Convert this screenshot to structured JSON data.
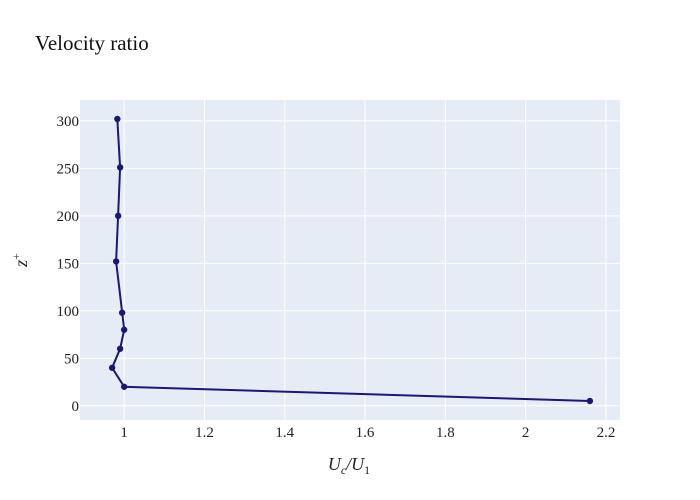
{
  "chart_data": {
    "type": "line",
    "title": "Velocity ratio",
    "xlabel": "U_c/U_1",
    "xlabel_display": "U",
    "xlabel_sub_c": "c",
    "xlabel_slash": "/U",
    "xlabel_sub_1": "1",
    "ylabel": "z+",
    "ylabel_base": "z",
    "ylabel_sup": "+",
    "xlim": [
      0.89,
      2.235
    ],
    "ylim": [
      -15,
      322
    ],
    "x_ticks": [
      1,
      1.2,
      1.4,
      1.6,
      1.8,
      2,
      2.2
    ],
    "x_tick_labels": [
      "1",
      "1.2",
      "1.4",
      "1.6",
      "1.8",
      "2",
      "2.2"
    ],
    "y_ticks": [
      0,
      50,
      100,
      150,
      200,
      250,
      300
    ],
    "y_tick_labels": [
      "0",
      "50",
      "100",
      "150",
      "200",
      "250",
      "300"
    ],
    "grid": true,
    "series": [
      {
        "color": "#191970",
        "x": [
          2.16,
          1.0,
          0.97,
          0.99,
          1.0,
          0.995,
          0.98,
          0.985,
          0.99,
          0.983
        ],
        "y": [
          5,
          20,
          40,
          60,
          80,
          98,
          152,
          200,
          251,
          302
        ]
      }
    ]
  }
}
